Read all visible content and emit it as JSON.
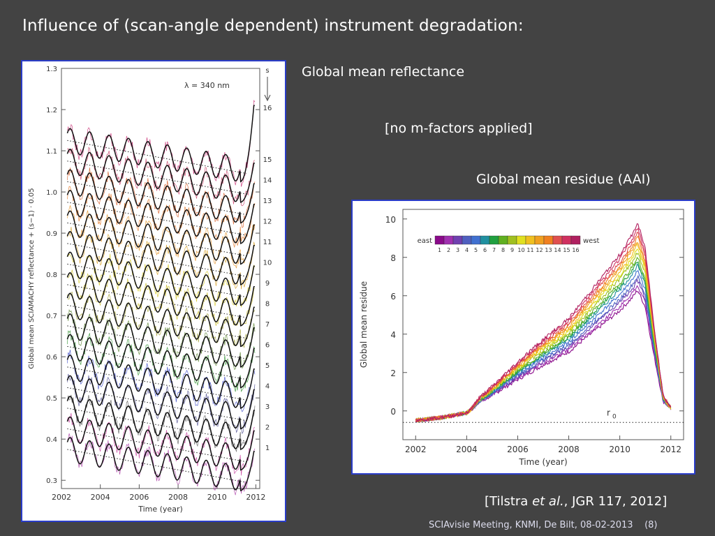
{
  "title": "Influence of (scan-angle dependent) instrument degradation:",
  "captions": {
    "reflectance": "Global mean reflectance",
    "m_factors": "[no m-factors applied]",
    "residue": "Global mean residue (AAI)"
  },
  "citation": {
    "pre": "[Tilstra ",
    "italic": "et al.",
    "post": ", JGR 117, 2012]"
  },
  "footer": {
    "meeting": "SCIAvisie Meeting, KNMI, De Bilt, 08-02-2013",
    "page": "(8)"
  },
  "chart_data": [
    {
      "type": "line",
      "xlabel": "Time (year)",
      "ylabel": "Global mean SCIAMACHY reflectance + (s−1) · 0.05",
      "xlim": [
        2002,
        2012.2
      ],
      "ylim": [
        0.28,
        1.3
      ],
      "x_ticks": [
        "2002",
        "2004",
        "2006",
        "2008",
        "2010",
        "2012"
      ],
      "y_ticks": [
        "0.3",
        "0.4",
        "0.5",
        "0.6",
        "0.7",
        "0.8",
        "0.9",
        "1.0",
        "1.1",
        "1.2",
        "1.3"
      ],
      "annotation": "λ = 340 nm",
      "series_label": "s",
      "series_names": [
        "1",
        "2",
        "3",
        "4",
        "5",
        "6",
        "7",
        "8",
        "9",
        "10",
        "11",
        "12",
        "13",
        "14",
        "15",
        "16"
      ],
      "colors": [
        "#a0209a",
        "#c02090",
        "#404040",
        "#303080",
        "#2030c0",
        "#108010",
        "#407010",
        "#909010",
        "#c0b000",
        "#d0c000",
        "#d09000",
        "#e08000",
        "#e06000",
        "#d04000",
        "#c02050",
        "#c01060"
      ],
      "base_start": [
        0.375,
        0.425,
        0.475,
        0.525,
        0.575,
        0.625,
        0.675,
        0.725,
        0.775,
        0.825,
        0.875,
        0.925,
        0.975,
        1.025,
        1.075,
        1.125
      ],
      "amplitude": 0.03,
      "drift_total": 0.07,
      "end_value": [
        0.37,
        0.42,
        0.47,
        0.52,
        0.57,
        0.62,
        0.67,
        0.72,
        0.77,
        0.82,
        0.87,
        0.92,
        0.97,
        1.02,
        1.07,
        1.21
      ],
      "grid": false
    },
    {
      "type": "line",
      "xlabel": "Time (year)",
      "ylabel": "Global mean residue",
      "xlim": [
        2001.5,
        2012.5
      ],
      "ylim": [
        -1.5,
        10.5
      ],
      "x_ticks": [
        "2002",
        "2004",
        "2006",
        "2008",
        "2010",
        "2012"
      ],
      "y_ticks": [
        "0",
        "2",
        "4",
        "6",
        "8",
        "10"
      ],
      "legend": {
        "left": "east",
        "right": "west",
        "labels": [
          "1",
          "2",
          "3",
          "4",
          "5",
          "6",
          "7",
          "8",
          "9",
          "10",
          "11",
          "12",
          "13",
          "14",
          "15",
          "16"
        ],
        "position": "top-left"
      },
      "reference_label": "r",
      "reference_subscript": "0",
      "reference_value": -0.6,
      "colors": [
        "#8a0a8a",
        "#a030b0",
        "#7040b0",
        "#5060c0",
        "#4070d0",
        "#2090a0",
        "#20a040",
        "#60b020",
        "#a0c020",
        "#e0e020",
        "#f0c020",
        "#f0a020",
        "#f08020",
        "#e05050",
        "#d03060",
        "#b02060"
      ],
      "peak_values": [
        6.3,
        6.55,
        6.8,
        7.0,
        7.3,
        7.6,
        7.8,
        8.0,
        8.3,
        8.5,
        8.7,
        8.9,
        9.1,
        9.3,
        9.55,
        9.8
      ],
      "x_knots": [
        2002,
        2003,
        2004,
        2004.5,
        2005,
        2006,
        2007,
        2008,
        2009,
        2010,
        2010.5,
        2010.7,
        2011.0,
        2011.3,
        2011.7,
        2012.0
      ],
      "y_profile": [
        -0.5,
        -0.35,
        -0.1,
        0.35,
        0.65,
        1.3,
        1.9,
        2.45,
        3.3,
        4.15,
        4.7,
        5.0,
        4.3,
        2.5,
        0.4,
        0.1
      ],
      "grid": false
    }
  ]
}
